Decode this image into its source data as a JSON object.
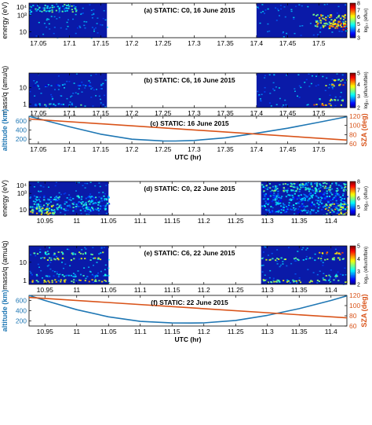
{
  "figure": {
    "colors": {
      "altitude": "#1f77b4",
      "sza": "#d95319",
      "spectrogram_background": "#0a1aa8"
    }
  },
  "chart_data": [
    {
      "id": "a",
      "type": "heatmap",
      "title": "(a) STATIC: C0, 16 June 2015",
      "ylabel": "energy (eV)",
      "yscale": "log",
      "yticks": [
        {
          "v": 10,
          "t": "10"
        },
        {
          "v": 1000,
          "t": "10³"
        },
        {
          "v": 10000,
          "t": "10⁴"
        }
      ],
      "ylim": [
        2,
        30000
      ],
      "xlim": [
        17.035,
        17.545
      ],
      "xticks": [
        "17.05",
        "17.1",
        "17.15",
        "17.2",
        "17.25",
        "17.3",
        "17.35",
        "17.4",
        "17.45",
        "17.5"
      ],
      "data_intervals": [
        [
          17.035,
          17.16
        ],
        [
          17.4,
          17.545
        ]
      ],
      "colorbar": {
        "label": "log₁₀ (eflux)",
        "ticks": [
          "3",
          "4",
          "5",
          "6",
          "7",
          "8"
        ],
        "range": [
          3,
          8
        ]
      },
      "features": [
        {
          "x": [
            17.035,
            17.11
          ],
          "y": [
            3000,
            25000
          ],
          "level": 5.4
        },
        {
          "x": [
            17.49,
            17.545
          ],
          "y": [
            40,
            1500
          ],
          "level": 6.5
        },
        {
          "x": [
            17.515,
            17.545
          ],
          "y": [
            20,
            200
          ],
          "level": 7.2
        }
      ]
    },
    {
      "id": "b",
      "type": "heatmap",
      "title": "(b) STATIC: C6, 16 June 2015",
      "ylabel": "mass/q (amu/q)",
      "yscale": "log",
      "yticks": [
        {
          "v": 1,
          "t": "1"
        },
        {
          "v": 10,
          "t": "10"
        }
      ],
      "ylim": [
        0.6,
        80
      ],
      "xlim": [
        17.035,
        17.545
      ],
      "xticks": [
        "17.05",
        "17.1",
        "17.15",
        "17.2",
        "17.25",
        "17.3",
        "17.35",
        "17.4",
        "17.45",
        "17.5"
      ],
      "data_intervals": [
        [
          17.035,
          17.16
        ],
        [
          17.4,
          17.545
        ]
      ],
      "colorbar": {
        "label": "log₁₀ (eflux/tofbin)",
        "ticks": [
          "2",
          "3",
          "4",
          "5"
        ],
        "range": [
          2,
          5
        ]
      },
      "features": [
        {
          "x": [
            17.035,
            17.12
          ],
          "y": [
            0.9,
            1.15
          ],
          "level": 3.3
        },
        {
          "x": [
            17.035,
            17.15
          ],
          "y": [
            14,
            18
          ],
          "level": 2.9
        },
        {
          "x": [
            17.49,
            17.545
          ],
          "y": [
            0.9,
            1.15
          ],
          "level": 4.4
        },
        {
          "x": [
            17.5,
            17.545
          ],
          "y": [
            1.7,
            2.3
          ],
          "level": 3.8
        },
        {
          "x": [
            17.51,
            17.545
          ],
          "y": [
            14,
            18
          ],
          "level": 4.2
        },
        {
          "x": [
            17.52,
            17.545
          ],
          "y": [
            28,
            36
          ],
          "level": 3.9
        }
      ]
    },
    {
      "id": "c",
      "type": "line",
      "title": "(c) STATIC: 16 June 2015",
      "xlabel": "UTC (hr)",
      "ylabel": "altitude (km)",
      "y2label": "SZA (deg)",
      "xlim": [
        17.035,
        17.545
      ],
      "xticks": [
        "17.05",
        "17.1",
        "17.15",
        "17.2",
        "17.25",
        "17.3",
        "17.35",
        "17.4",
        "17.45",
        "17.5"
      ],
      "ylim": [
        100,
        700
      ],
      "yticks": [
        "200",
        "400",
        "600"
      ],
      "y2lim": [
        60,
        120
      ],
      "y2ticks": [
        "60",
        "80",
        "100",
        "120"
      ],
      "series": [
        {
          "name": "altitude",
          "axis": "left",
          "x": [
            17.035,
            17.1,
            17.15,
            17.2,
            17.25,
            17.27,
            17.3,
            17.35,
            17.4,
            17.45,
            17.5,
            17.545
          ],
          "y": [
            700,
            470,
            310,
            200,
            162,
            160,
            172,
            230,
            330,
            440,
            570,
            690
          ]
        },
        {
          "name": "SZA",
          "axis": "right",
          "x": [
            17.035,
            17.545
          ],
          "y": [
            114,
            68
          ]
        }
      ]
    },
    {
      "id": "d",
      "type": "heatmap",
      "title": "(d) STATIC: C0, 22 June 2015",
      "ylabel": "energy (eV)",
      "yscale": "log",
      "yticks": [
        {
          "v": 10,
          "t": "10"
        },
        {
          "v": 1000,
          "t": "10³"
        },
        {
          "v": 10000,
          "t": "10⁴"
        }
      ],
      "ylim": [
        2,
        30000
      ],
      "xlim": [
        10.925,
        11.425
      ],
      "xticks": [
        "10.95",
        "11",
        "11.05",
        "11.1",
        "11.15",
        "11.2",
        "11.25",
        "11.3",
        "11.35",
        "11.4"
      ],
      "data_intervals": [
        [
          10.925,
          11.05
        ],
        [
          11.29,
          11.425
        ]
      ],
      "colorbar": {
        "label": "log₁₀ (eflux)",
        "ticks": [
          "4",
          "5",
          "6",
          "7",
          "8"
        ],
        "range": [
          4,
          8
        ]
      },
      "features": [
        {
          "x": [
            10.925,
            11.05
          ],
          "y": [
            8,
            600
          ],
          "level": 5.6
        },
        {
          "x": [
            10.925,
            10.965
          ],
          "y": [
            3,
            50
          ],
          "level": 6.6
        },
        {
          "x": [
            11.29,
            11.425
          ],
          "y": [
            2000,
            25000
          ],
          "level": 6.0
        },
        {
          "x": [
            11.29,
            11.425
          ],
          "y": [
            5,
            1500
          ],
          "level": 5.4
        },
        {
          "x": [
            11.39,
            11.425
          ],
          "y": [
            3,
            60
          ],
          "level": 6.6
        }
      ]
    },
    {
      "id": "e",
      "type": "heatmap",
      "title": "(e) STATIC: C6, 22 June 2015",
      "ylabel": "mass/q (amu/q)",
      "yscale": "log",
      "yticks": [
        {
          "v": 1,
          "t": "1"
        },
        {
          "v": 10,
          "t": "10"
        }
      ],
      "ylim": [
        0.6,
        80
      ],
      "xlim": [
        10.925,
        11.425
      ],
      "xticks": [
        "10.95",
        "11",
        "11.05",
        "11.1",
        "11.15",
        "11.2",
        "11.25",
        "11.3",
        "11.35",
        "11.4"
      ],
      "data_intervals": [
        [
          10.925,
          11.05
        ],
        [
          11.29,
          11.425
        ]
      ],
      "colorbar": {
        "label": "log₁₀ (eflux/tofbin)",
        "ticks": [
          "2",
          "3",
          "4",
          "5"
        ],
        "range": [
          2,
          5
        ]
      },
      "features": [
        {
          "x": [
            10.925,
            11.05
          ],
          "y": [
            0.85,
            1.2
          ],
          "level": 4.1
        },
        {
          "x": [
            10.925,
            11.05
          ],
          "y": [
            1.7,
            2.3
          ],
          "level": 3.2
        },
        {
          "x": [
            10.93,
            10.98
          ],
          "y": [
            14,
            19
          ],
          "level": 3.9
        },
        {
          "x": [
            10.99,
            11.04
          ],
          "y": [
            14,
            19
          ],
          "level": 3.9
        },
        {
          "x": [
            10.93,
            10.98
          ],
          "y": [
            28,
            40
          ],
          "level": 3.6
        },
        {
          "x": [
            10.99,
            11.04
          ],
          "y": [
            28,
            40
          ],
          "level": 3.6
        },
        {
          "x": [
            11.29,
            11.425
          ],
          "y": [
            0.85,
            1.2
          ],
          "level": 3.8
        },
        {
          "x": [
            11.29,
            11.425
          ],
          "y": [
            14,
            19
          ],
          "level": 3.7
        },
        {
          "x": [
            11.38,
            11.425
          ],
          "y": [
            28,
            40
          ],
          "level": 4.3
        },
        {
          "x": [
            11.39,
            11.425
          ],
          "y": [
            1.7,
            2.3
          ],
          "level": 3.6
        }
      ]
    },
    {
      "id": "f",
      "type": "line",
      "title": "(f) STATIC: 22 June 2015",
      "xlabel": "UTC (hr)",
      "ylabel": "altitude (km)",
      "y2label": "SZA (deg)",
      "xlim": [
        10.925,
        11.425
      ],
      "xticks": [
        "10.95",
        "11",
        "11.05",
        "11.1",
        "11.15",
        "11.2",
        "11.25",
        "11.3",
        "11.35",
        "11.4"
      ],
      "ylim": [
        100,
        700
      ],
      "yticks": [
        "200",
        "400",
        "600"
      ],
      "y2lim": [
        60,
        120
      ],
      "y2ticks": [
        "60",
        "80",
        "100",
        "120"
      ],
      "series": [
        {
          "name": "altitude",
          "axis": "left",
          "x": [
            10.925,
            10.95,
            11.0,
            11.05,
            11.1,
            11.15,
            11.18,
            11.2,
            11.25,
            11.3,
            11.35,
            11.4,
            11.425
          ],
          "y": [
            700,
            600,
            420,
            280,
            190,
            160,
            158,
            162,
            210,
            310,
            440,
            600,
            690
          ]
        },
        {
          "name": "SZA",
          "axis": "right",
          "x": [
            10.925,
            11.425
          ],
          "y": [
            116,
            76
          ]
        }
      ]
    }
  ]
}
